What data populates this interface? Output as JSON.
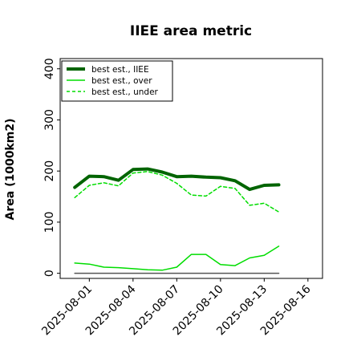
{
  "chart_data": {
    "type": "line",
    "title": "IIEE area metric",
    "xlabel": "",
    "ylabel": "Area (1000km2)",
    "x_dates": [
      "2025-07-31",
      "2025-08-01",
      "2025-08-02",
      "2025-08-03",
      "2025-08-04",
      "2025-08-05",
      "2025-08-06",
      "2025-08-07",
      "2025-08-08",
      "2025-08-09",
      "2025-08-10",
      "2025-08-11",
      "2025-08-12",
      "2025-08-13",
      "2025-08-14"
    ],
    "x_ticks": [
      "2025-08-01",
      "2025-08-04",
      "2025-08-07",
      "2025-08-10",
      "2025-08-13",
      "2025-08-16"
    ],
    "xlim": [
      "2025-07-30",
      "2025-08-17"
    ],
    "ylim": [
      -10,
      420
    ],
    "y_ticks": [
      0,
      100,
      200,
      300,
      400
    ],
    "grid": false,
    "legend_position": "top-left",
    "series": [
      {
        "name": "best est., IIEE",
        "color": "#006400",
        "style": "solid",
        "width": 4,
        "values": [
          168,
          190,
          189,
          182,
          203,
          204,
          198,
          189,
          190,
          188,
          187,
          181,
          164,
          172,
          173
        ]
      },
      {
        "name": "best est., over",
        "color": "#00dd00",
        "style": "solid",
        "width": 1.5,
        "values": [
          20,
          18,
          12,
          11,
          9,
          7,
          6,
          12,
          37,
          37,
          17,
          15,
          30,
          35,
          53
        ]
      },
      {
        "name": "best est., under",
        "color": "#00dd00",
        "style": "dashed",
        "width": 1.5,
        "values": [
          148,
          172,
          177,
          171,
          196,
          199,
          192,
          176,
          153,
          151,
          170,
          166,
          133,
          137,
          120
        ]
      },
      {
        "name": "",
        "color": "#555555",
        "style": "solid",
        "width": 1.5,
        "values": [
          0,
          0,
          0,
          0,
          0,
          0,
          0,
          0,
          0,
          0,
          0,
          0,
          0,
          0,
          0
        ]
      }
    ]
  }
}
